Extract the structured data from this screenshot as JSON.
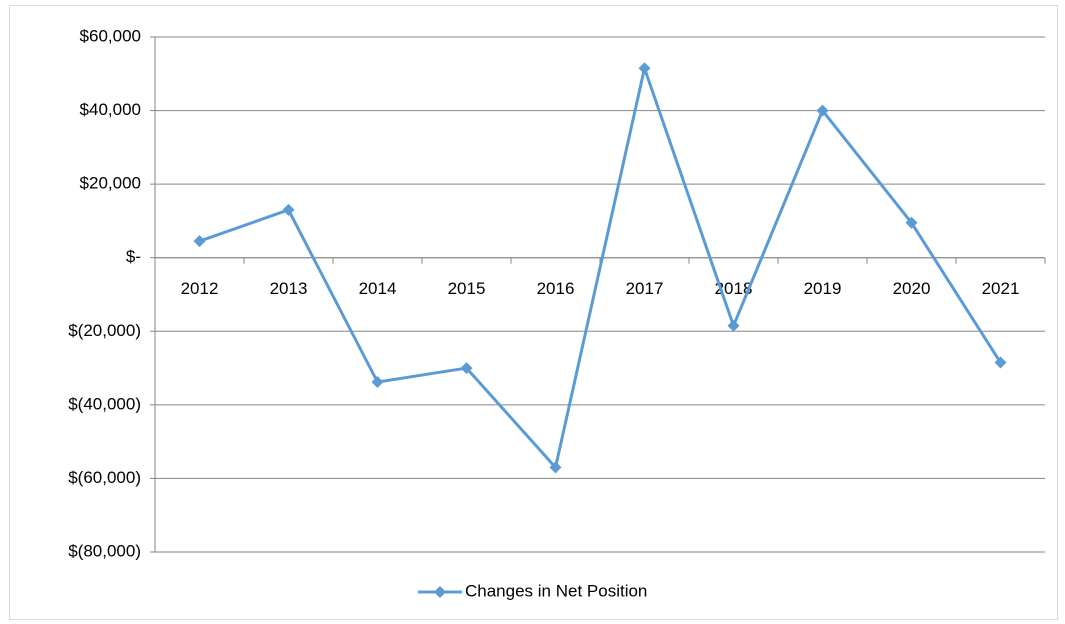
{
  "chart_data": {
    "type": "line",
    "categories": [
      "2012",
      "2013",
      "2014",
      "2015",
      "2016",
      "2017",
      "2018",
      "2019",
      "2020",
      "2021"
    ],
    "series": [
      {
        "name": "Changes in Net Position",
        "color": "#5b9bd5",
        "values": [
          4500,
          13000,
          -33800,
          -30000,
          -57000,
          51500,
          -18500,
          40000,
          9500,
          -28500
        ]
      }
    ],
    "ylim": [
      -80000,
      60000
    ],
    "yticks": [
      {
        "value": -80000,
        "label": "$(80,000)"
      },
      {
        "value": -60000,
        "label": "$(60,000)"
      },
      {
        "value": -40000,
        "label": "$(40,000)"
      },
      {
        "value": -20000,
        "label": "$(20,000)"
      },
      {
        "value": 0,
        "label": "$-"
      },
      {
        "value": 20000,
        "label": "$20,000"
      },
      {
        "value": 40000,
        "label": "$40,000"
      },
      {
        "value": 60000,
        "label": "$60,000"
      }
    ],
    "grid": true,
    "legend": "bottom"
  }
}
